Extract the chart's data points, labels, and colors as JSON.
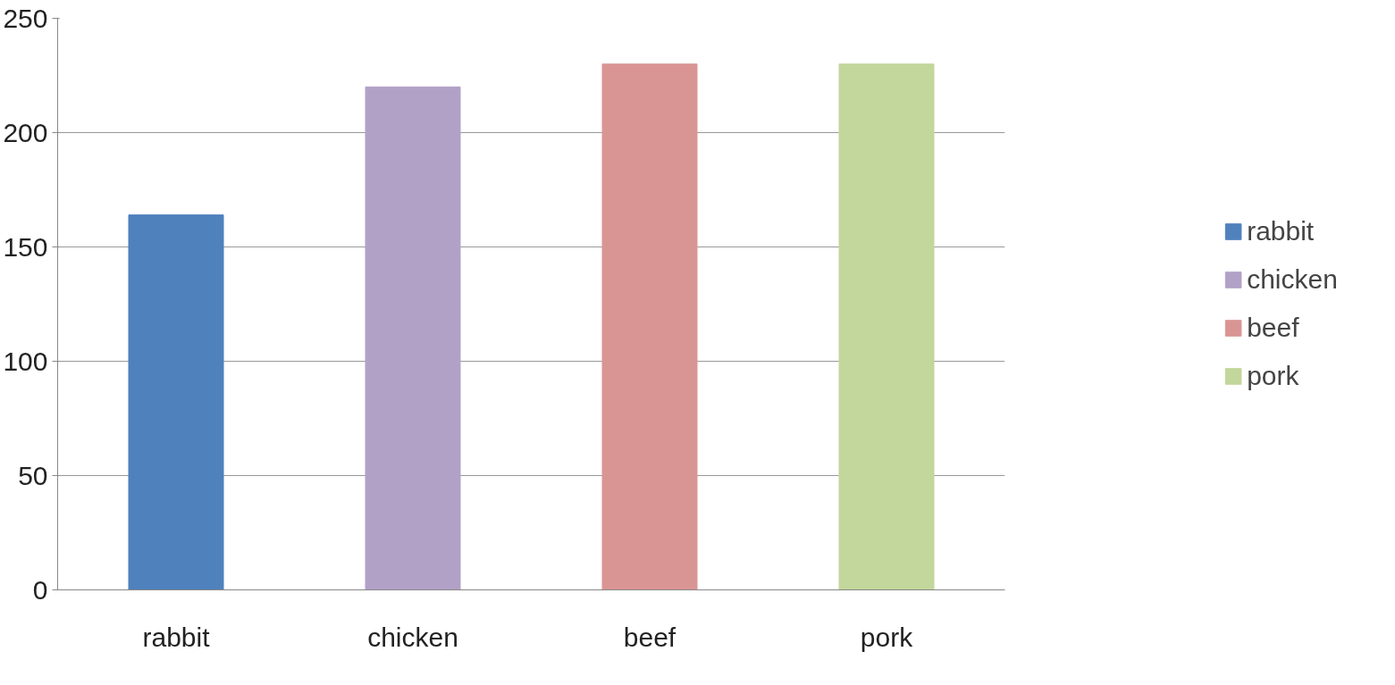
{
  "chart_data": {
    "type": "bar",
    "categories": [
      "rabbit",
      "chicken",
      "beef",
      "pork"
    ],
    "series": [
      {
        "name": "rabbit",
        "color": "#4f81bd",
        "values": [
          164,
          null,
          null,
          null
        ]
      },
      {
        "name": "chicken",
        "color": "#b2a1c7",
        "values": [
          null,
          220,
          null,
          null
        ]
      },
      {
        "name": "beef",
        "color": "#d99594",
        "values": [
          null,
          null,
          230,
          null
        ]
      },
      {
        "name": "pork",
        "color": "#c3d69b",
        "values": [
          null,
          null,
          null,
          230
        ]
      }
    ],
    "ylim": [
      0,
      250
    ],
    "yticks": [
      0,
      50,
      100,
      150,
      200,
      250
    ],
    "grid": "y",
    "legend": "right"
  }
}
